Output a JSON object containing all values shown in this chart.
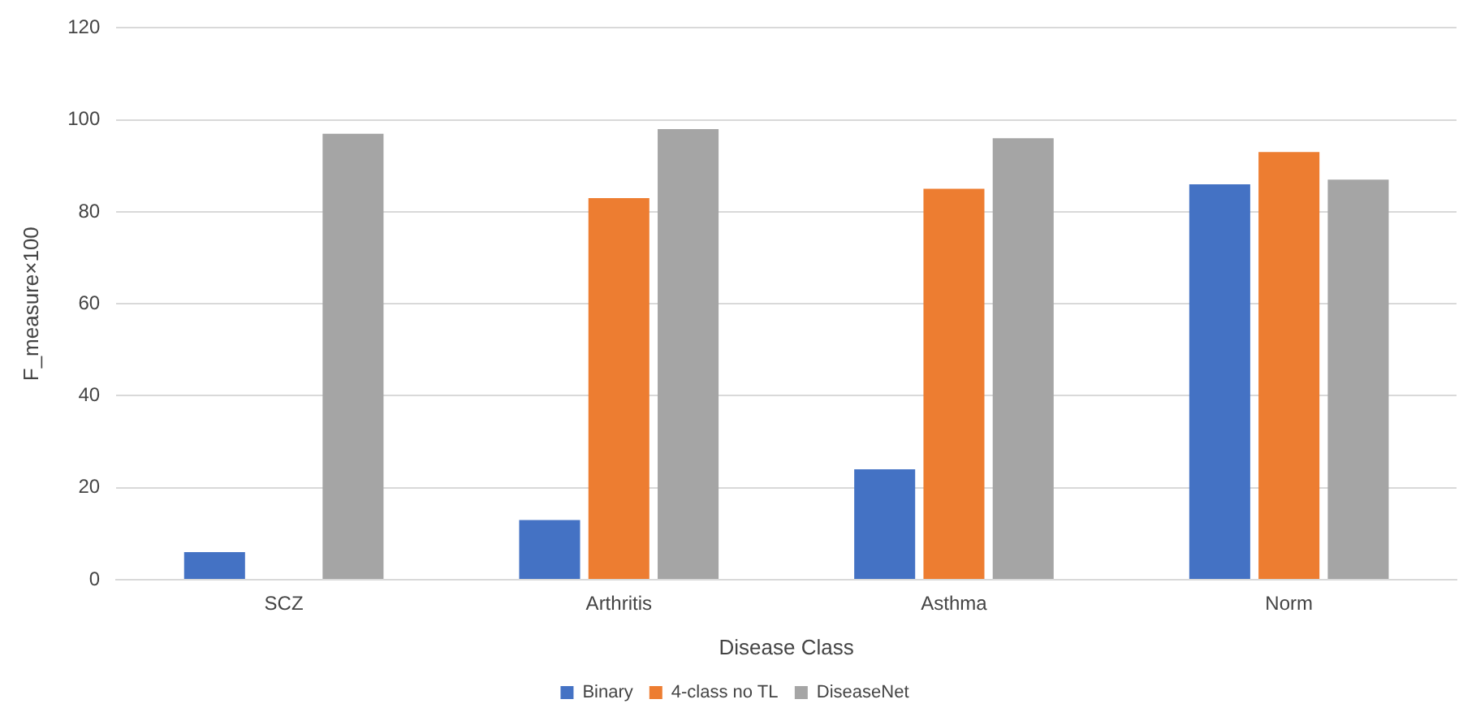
{
  "chart_data": {
    "type": "bar",
    "xlabel": "Disease Class",
    "ylabel": "F_measure×100",
    "categories": [
      "SCZ",
      "Arthritis",
      "Asthma",
      "Norm"
    ],
    "series": [
      {
        "name": "Binary",
        "color": "#4472c4",
        "values": [
          6,
          13,
          24,
          86
        ]
      },
      {
        "name": "4-class no TL",
        "color": "#ed7d31",
        "values": [
          0,
          83,
          85,
          93
        ]
      },
      {
        "name": "DiseaseNet",
        "color": "#a5a5a5",
        "values": [
          97,
          98,
          96,
          87
        ]
      }
    ],
    "ylim": [
      0,
      120
    ],
    "yticks": [
      0,
      20,
      40,
      60,
      80,
      100,
      120
    ],
    "grid": "y",
    "legend": "bottom"
  }
}
